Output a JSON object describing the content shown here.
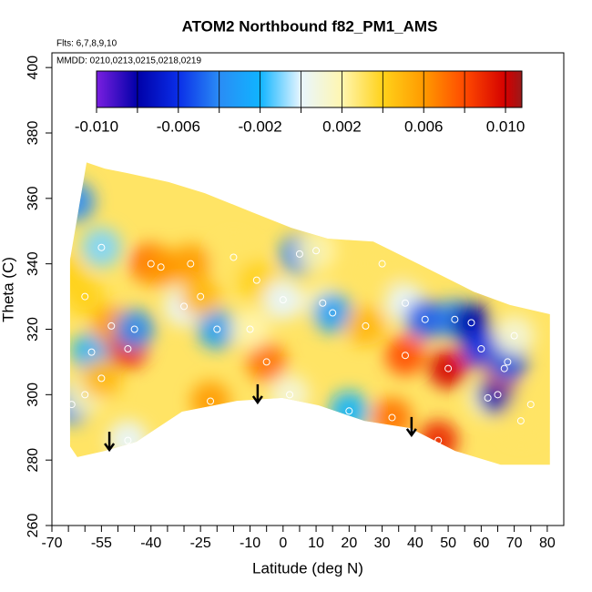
{
  "chart_data": {
    "type": "interpolated-field",
    "title": "ATOM2 Northbound f82_PM1_AMS",
    "subtitle": "Flts: 6,7,8,9,10",
    "annotation": "MMDD: 0210,0213,0215,0218,0219",
    "x_label": "Latitude (deg N)",
    "y_label": "Theta (C)",
    "xlim": [
      -70,
      85
    ],
    "ylim": [
      260,
      404.5
    ],
    "xticks": [
      -70,
      -55,
      -40,
      -25,
      -10,
      0,
      10,
      20,
      30,
      40,
      50,
      60,
      70,
      80
    ],
    "xminor_ticks": [
      -65,
      -60,
      -50,
      -45,
      -35,
      -30,
      -20,
      -15,
      -5,
      5,
      15,
      25,
      35,
      45,
      55,
      65,
      75
    ],
    "yticks": [
      260,
      280,
      300,
      320,
      340,
      360,
      380,
      400
    ],
    "colorbar": {
      "lim": [
        -0.01,
        0.0108
      ],
      "ticks": [
        {
          "value": -0.01,
          "label": "-0.010"
        },
        {
          "value": -0.006,
          "label": "-0.006"
        },
        {
          "value": -0.002,
          "label": "-0.002"
        },
        {
          "value": 0.002,
          "label": "0.002"
        },
        {
          "value": 0.006,
          "label": "0.006"
        },
        {
          "value": 0.01,
          "label": "0.010"
        }
      ],
      "breaks": [
        -0.01,
        -0.008,
        -0.006,
        -0.004,
        -0.002,
        0,
        0.002,
        0.004,
        0.006,
        0.008,
        0.01
      ],
      "stops": [
        {
          "value": -0.01,
          "color": "#7a1fe0"
        },
        {
          "value": -0.008,
          "color": "#0000a8"
        },
        {
          "value": -0.006,
          "color": "#0a2ee8"
        },
        {
          "value": -0.004,
          "color": "#2a8cf5"
        },
        {
          "value": -0.002,
          "color": "#10b4ff"
        },
        {
          "value": 0,
          "color": "#e8f6ff"
        },
        {
          "value": 0.002,
          "color": "#fff6b0"
        },
        {
          "value": 0.004,
          "color": "#ffd21a"
        },
        {
          "value": 0.006,
          "color": "#ff9a00"
        },
        {
          "value": 0.008,
          "color": "#ff4a00"
        },
        {
          "value": 0.01,
          "color": "#d40000"
        },
        {
          "value": 0.0108,
          "color": "#9a1a1a"
        }
      ]
    },
    "domain_outline": {
      "x": [
        -64.5,
        -64.5,
        -59.5,
        -54.0,
        -47.1,
        -34.7,
        -23.7,
        -9.9,
        2.5,
        13.5,
        27.3,
        41.1,
        57.7,
        68.7,
        80.8,
        80.8,
        65.9,
        52.1,
        38.4,
        24.6,
        10.8,
        -0.2,
        -14.0,
        -30.6,
        -44.4,
        -54.0,
        -62.3,
        -64.5
      ],
      "y": [
        291.2,
        341.3,
        371.0,
        369.1,
        367.7,
        365.0,
        361.6,
        356.0,
        351.0,
        347.7,
        346.8,
        339.9,
        331.5,
        327.4,
        324.6,
        278.6,
        278.6,
        282.8,
        289.8,
        292.0,
        296.7,
        299.0,
        298.1,
        294.8,
        285.6,
        282.8,
        280.9,
        284.2
      ]
    },
    "background_value": 0.003,
    "points": {
      "x": [
        -63,
        -66,
        -64,
        -60,
        -58,
        -52,
        -47,
        -47,
        -45,
        -40,
        -37,
        -30,
        -28,
        -22,
        -20,
        -15,
        -8,
        0,
        2,
        5,
        10,
        12,
        15,
        20,
        25,
        30,
        33,
        37,
        47,
        50,
        52,
        57,
        60,
        62,
        65,
        67,
        68,
        72,
        75,
        70,
        43,
        37,
        -25,
        -5,
        -60,
        -55,
        -55,
        -10
      ],
      "y": [
        359,
        337,
        297,
        300,
        313,
        321,
        314,
        286,
        320,
        340,
        339,
        327,
        340,
        298,
        320,
        342,
        335,
        329,
        300,
        343,
        344,
        328,
        325,
        295,
        321,
        340,
        293,
        328,
        286,
        308,
        323,
        322,
        314,
        299,
        300,
        308,
        310,
        292,
        297,
        318,
        323,
        312,
        330,
        310,
        330,
        345,
        305,
        320
      ],
      "values": [
        -0.004,
        0.004,
        -0.004,
        0.002,
        -0.002,
        0.006,
        0.009,
        0,
        -0.004,
        0.008,
        0.006,
        0,
        0.006,
        0.006,
        -0.003,
        0.003,
        0.004,
        0,
        0.001,
        -0.004,
        0.002,
        0.002,
        -0.003,
        -0.002,
        0.005,
        0.003,
        0.007,
        0,
        0.009,
        0.01,
        -0.004,
        -0.008,
        -0.006,
        0.001,
        -0.008,
        0.007,
        -0.005,
        0.003,
        0.003,
        0.001,
        -0.005,
        0.008,
        0.005,
        0.007,
        0.004,
        -0.001,
        0.005,
        0.002
      ]
    },
    "arrows": {
      "x": [
        -52.6,
        -7.7,
        38.9
      ],
      "y": [
        283.1,
        297.6,
        287.6
      ]
    }
  }
}
